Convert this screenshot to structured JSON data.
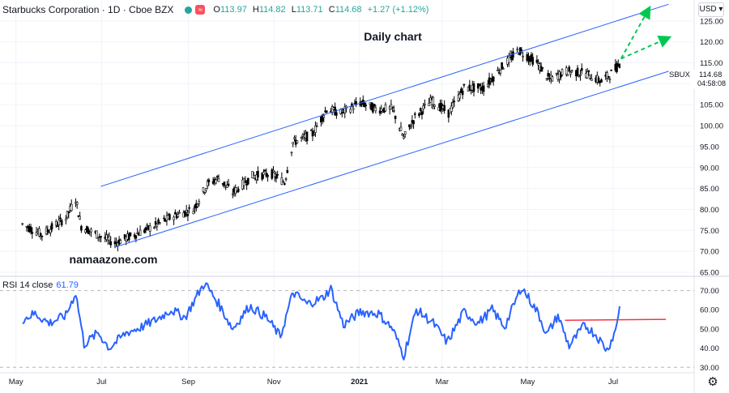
{
  "header": {
    "symbol_title": "Starbucks Corporation · 1D · Cboe BZX",
    "ohlc": {
      "open_label": "O",
      "open": "113.97",
      "high_label": "H",
      "high": "114.82",
      "low_label": "L",
      "low": "113.71",
      "close_label": "C",
      "close": "114.68",
      "change": "+1.27 (+1.12%)"
    },
    "currency": "USD"
  },
  "colors": {
    "candle": "#000000",
    "channel": "#2962ff",
    "rsi_line": "#2962ff",
    "resistance": "#f23645",
    "forecast": "#00c853",
    "grid": "#b2b5be",
    "axis_text": "#131722"
  },
  "chart_data": [
    {
      "type": "candlestick",
      "title": "Daily chart",
      "annotation": "namaazone.com",
      "symbol_tag": "SBUX",
      "last_price": "114.68",
      "countdown": "04:58:08",
      "ylim": [
        65,
        130
      ],
      "y_ticks": [
        "65.00",
        "70.00",
        "75.00",
        "80.00",
        "85.00",
        "90.00",
        "95.00",
        "100.00",
        "105.00",
        "110.00",
        "115.00",
        "120.00",
        "125.00"
      ],
      "x_labels": [
        "May",
        "Jul",
        "Sep",
        "Nov",
        "2021",
        "Mar",
        "May",
        "Jul"
      ],
      "date_range": [
        "2020-05-01",
        "2021-07-01"
      ],
      "series": [
        {
          "values": [
            {
              "date": "2020-05-01",
              "close": 76.5
            },
            {
              "date": "2020-05-15",
              "close": 74.0
            },
            {
              "date": "2020-06-01",
              "close": 78.0
            },
            {
              "date": "2020-06-08",
              "close": 82.5
            },
            {
              "date": "2020-06-12",
              "close": 76.0
            },
            {
              "date": "2020-06-26",
              "close": 73.5
            },
            {
              "date": "2020-07-06",
              "close": 72.0
            },
            {
              "date": "2020-07-20",
              "close": 74.0
            },
            {
              "date": "2020-08-03",
              "close": 76.0
            },
            {
              "date": "2020-08-17",
              "close": 78.5
            },
            {
              "date": "2020-08-31",
              "close": 80.0
            },
            {
              "date": "2020-09-10",
              "close": 86.0
            },
            {
              "date": "2020-09-18",
              "close": 87.5
            },
            {
              "date": "2020-09-28",
              "close": 84.0
            },
            {
              "date": "2020-10-12",
              "close": 88.0
            },
            {
              "date": "2020-10-26",
              "close": 88.5
            },
            {
              "date": "2020-11-04",
              "close": 86.5
            },
            {
              "date": "2020-11-10",
              "close": 96.0
            },
            {
              "date": "2020-11-24",
              "close": 98.0
            },
            {
              "date": "2020-12-04",
              "close": 104.0
            },
            {
              "date": "2020-12-14",
              "close": 103.0
            },
            {
              "date": "2020-12-28",
              "close": 105.5
            },
            {
              "date": "2021-01-08",
              "close": 104.0
            },
            {
              "date": "2021-01-20",
              "close": 104.0
            },
            {
              "date": "2021-01-28",
              "close": 97.0
            },
            {
              "date": "2021-02-05",
              "close": 102.0
            },
            {
              "date": "2021-02-17",
              "close": 106.0
            },
            {
              "date": "2021-03-01",
              "close": 103.0
            },
            {
              "date": "2021-03-12",
              "close": 109.0
            },
            {
              "date": "2021-03-26",
              "close": 109.0
            },
            {
              "date": "2021-04-08",
              "close": 114.0
            },
            {
              "date": "2021-04-20",
              "close": 118.0
            },
            {
              "date": "2021-05-03",
              "close": 115.0
            },
            {
              "date": "2021-05-12",
              "close": 111.0
            },
            {
              "date": "2021-05-24",
              "close": 113.0
            },
            {
              "date": "2021-06-07",
              "close": 112.5
            },
            {
              "date": "2021-06-18",
              "close": 110.5
            },
            {
              "date": "2021-06-25",
              "close": 112.5
            },
            {
              "date": "2021-07-01",
              "close": 114.68
            }
          ]
        }
      ],
      "channel": {
        "upper": [
          {
            "date": "2020-06-26",
            "value": 85.5
          },
          {
            "date": "2021-08-05",
            "value": 129.0
          }
        ],
        "lower": [
          {
            "date": "2020-07-06",
            "value": 71.0
          },
          {
            "date": "2021-08-05",
            "value": 113.0
          }
        ]
      },
      "forecast_arrows": [
        {
          "from": {
            "date": "2021-07-02",
            "value": 116.0
          },
          "to": {
            "date": "2021-07-22",
            "value": 128.0
          }
        },
        {
          "from": {
            "date": "2021-07-02",
            "value": 116.0
          },
          "to": {
            "date": "2021-08-05",
            "value": 121.0
          }
        }
      ]
    },
    {
      "type": "line",
      "title": "RSI 14 close",
      "current_value": "61.79",
      "ylim": [
        28,
        77
      ],
      "y_ticks": [
        "30.00",
        "40.00",
        "50.00",
        "60.00",
        "70.00"
      ],
      "bands": [
        30,
        70
      ],
      "series": [
        {
          "values": [
            {
              "date": "2020-05-01",
              "value": 55
            },
            {
              "date": "2020-05-10",
              "value": 58
            },
            {
              "date": "2020-05-20",
              "value": 53
            },
            {
              "date": "2020-06-01",
              "value": 57
            },
            {
              "date": "2020-06-08",
              "value": 69
            },
            {
              "date": "2020-06-14",
              "value": 42
            },
            {
              "date": "2020-06-24",
              "value": 48
            },
            {
              "date": "2020-07-02",
              "value": 40
            },
            {
              "date": "2020-07-14",
              "value": 48
            },
            {
              "date": "2020-07-25",
              "value": 51
            },
            {
              "date": "2020-08-05",
              "value": 55
            },
            {
              "date": "2020-08-15",
              "value": 60
            },
            {
              "date": "2020-08-25",
              "value": 56
            },
            {
              "date": "2020-09-03",
              "value": 68
            },
            {
              "date": "2020-09-08",
              "value": 74
            },
            {
              "date": "2020-09-18",
              "value": 63
            },
            {
              "date": "2020-09-28",
              "value": 50
            },
            {
              "date": "2020-10-10",
              "value": 62
            },
            {
              "date": "2020-10-22",
              "value": 56
            },
            {
              "date": "2020-11-01",
              "value": 46
            },
            {
              "date": "2020-11-10",
              "value": 69
            },
            {
              "date": "2020-11-20",
              "value": 63
            },
            {
              "date": "2020-12-01",
              "value": 66
            },
            {
              "date": "2020-12-07",
              "value": 71
            },
            {
              "date": "2020-12-16",
              "value": 52
            },
            {
              "date": "2020-12-28",
              "value": 59
            },
            {
              "date": "2021-01-10",
              "value": 58
            },
            {
              "date": "2021-01-20",
              "value": 50
            },
            {
              "date": "2021-01-28",
              "value": 36
            },
            {
              "date": "2021-02-06",
              "value": 60
            },
            {
              "date": "2021-02-18",
              "value": 53
            },
            {
              "date": "2021-02-28",
              "value": 43
            },
            {
              "date": "2021-03-12",
              "value": 59
            },
            {
              "date": "2021-03-22",
              "value": 53
            },
            {
              "date": "2021-04-01",
              "value": 60
            },
            {
              "date": "2021-04-10",
              "value": 51
            },
            {
              "date": "2021-04-18",
              "value": 65
            },
            {
              "date": "2021-04-22",
              "value": 72
            },
            {
              "date": "2021-05-04",
              "value": 58
            },
            {
              "date": "2021-05-10",
              "value": 47
            },
            {
              "date": "2021-05-18",
              "value": 57
            },
            {
              "date": "2021-05-26",
              "value": 41
            },
            {
              "date": "2021-06-06",
              "value": 52
            },
            {
              "date": "2021-06-14",
              "value": 47
            },
            {
              "date": "2021-06-22",
              "value": 39
            },
            {
              "date": "2021-06-28",
              "value": 49
            },
            {
              "date": "2021-07-01",
              "value": 61.79
            }
          ]
        }
      ],
      "resistance_line": [
        {
          "date": "2021-05-23",
          "value": 54.5
        },
        {
          "date": "2021-08-03",
          "value": 55.0
        }
      ]
    }
  ]
}
